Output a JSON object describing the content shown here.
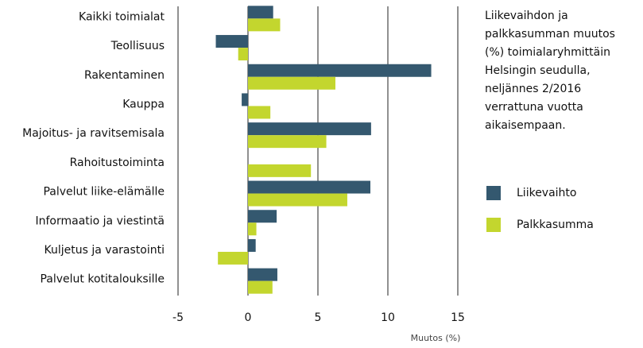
{
  "chart_data": {
    "type": "bar",
    "orientation": "horizontal",
    "categories": [
      "Kaikki toimialat",
      "Teollisuus",
      "Rakentaminen",
      "Kauppa",
      "Majoitus- ja ravitsemisala",
      "Rahoitustoiminta",
      "Palvelut liike-elämälle",
      "Informaatio ja viestintä",
      "Kuljetus ja varastointi",
      "Palvelut kotitalouksille"
    ],
    "series": [
      {
        "name": "Liikevaihto",
        "color": "#34586f",
        "values": [
          1.8,
          -2.3,
          13.1,
          -0.45,
          8.8,
          null,
          8.75,
          2.05,
          0.55,
          2.1
        ]
      },
      {
        "name": "Palkkasumma",
        "color": "#c3d62e",
        "values": [
          2.3,
          -0.7,
          6.25,
          1.6,
          5.6,
          4.5,
          7.1,
          0.6,
          -2.15,
          1.75
        ]
      }
    ],
    "xlim": [
      -5,
      15
    ],
    "xticks": [
      -5,
      0,
      5,
      10,
      15
    ],
    "x_label": "Muutos (%)",
    "annotation": [
      "Liikevaihdon ja",
      "palkkasumman muutos",
      "(%) toimialaryhmittäin",
      "Helsingin seudulla,",
      "neljännes 2/2016",
      "verrattuna vuotta",
      "aikaisempaan."
    ],
    "grid": true
  }
}
